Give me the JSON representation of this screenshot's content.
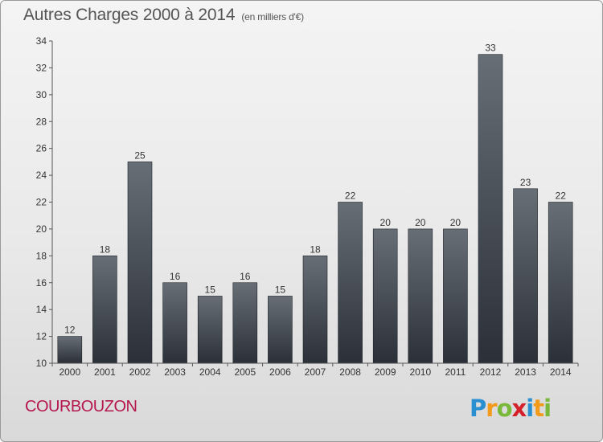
{
  "header": {
    "title": "Autres Charges 2000 à 2014",
    "subtitle": "(en milliers d'€)"
  },
  "footer": {
    "commune": "COURBOUZON",
    "brand": "Proxiti"
  },
  "chart_data": {
    "type": "bar",
    "title": "Autres Charges 2000 à 2014",
    "subtitle": "(en milliers d'€)",
    "categories": [
      "2000",
      "2001",
      "2002",
      "2003",
      "2004",
      "2005",
      "2006",
      "2007",
      "2008",
      "2009",
      "2010",
      "2011",
      "2012",
      "2013",
      "2014"
    ],
    "values": [
      12,
      18,
      25,
      16,
      15,
      16,
      15,
      18,
      22,
      20,
      20,
      20,
      33,
      23,
      22
    ],
    "ylim": [
      10,
      34
    ],
    "yticks": [
      10,
      12,
      14,
      16,
      18,
      20,
      22,
      24,
      26,
      28,
      30,
      32,
      34
    ],
    "xlabel": "",
    "ylabel": "",
    "grid": false,
    "colors": {
      "bar_top": "#676e76",
      "bar_bottom": "#2b3038",
      "axis": "#555555",
      "commune": "#b5174f"
    }
  }
}
